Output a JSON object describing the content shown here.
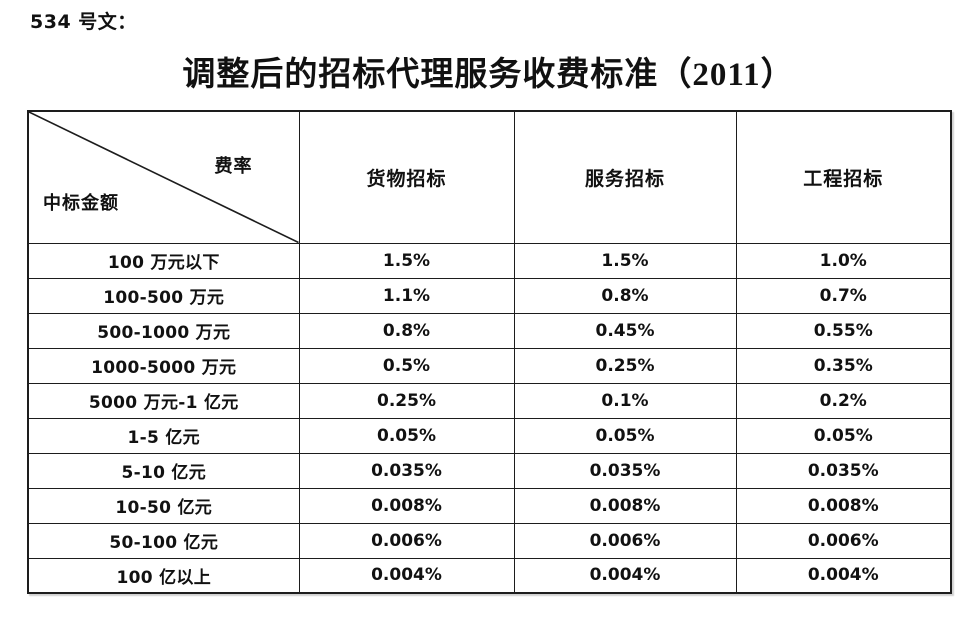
{
  "doc_label": "534 号文：",
  "title": "调整后的招标代理服务收费标准（2011）",
  "table": {
    "corner": {
      "top_right_label": "费率",
      "bottom_left_label": "中标金额"
    },
    "columns": [
      "货物招标",
      "服务招标",
      "工程招标"
    ],
    "rows": [
      {
        "range": "100 万元以下",
        "values": [
          "1.5%",
          "1.5%",
          "1.0%"
        ]
      },
      {
        "range": "100-500 万元",
        "values": [
          "1.1%",
          "0.8%",
          "0.7%"
        ]
      },
      {
        "range": "500-1000 万元",
        "values": [
          "0.8%",
          "0.45%",
          "0.55%"
        ]
      },
      {
        "range": "1000-5000 万元",
        "values": [
          "0.5%",
          "0.25%",
          "0.35%"
        ]
      },
      {
        "range": "5000 万元-1 亿元",
        "values": [
          "0.25%",
          "0.1%",
          "0.2%"
        ]
      },
      {
        "range": "1-5 亿元",
        "values": [
          "0.05%",
          "0.05%",
          "0.05%"
        ]
      },
      {
        "range": "5-10 亿元",
        "values": [
          "0.035%",
          "0.035%",
          "0.035%"
        ]
      },
      {
        "range": "10-50 亿元",
        "values": [
          "0.008%",
          "0.008%",
          "0.008%"
        ]
      },
      {
        "range": "50-100 亿元",
        "values": [
          "0.006%",
          "0.006%",
          "0.006%"
        ]
      },
      {
        "range": "100 亿以上",
        "values": [
          "0.004%",
          "0.004%",
          "0.004%"
        ]
      }
    ],
    "border_color": "#1d1d1d"
  }
}
